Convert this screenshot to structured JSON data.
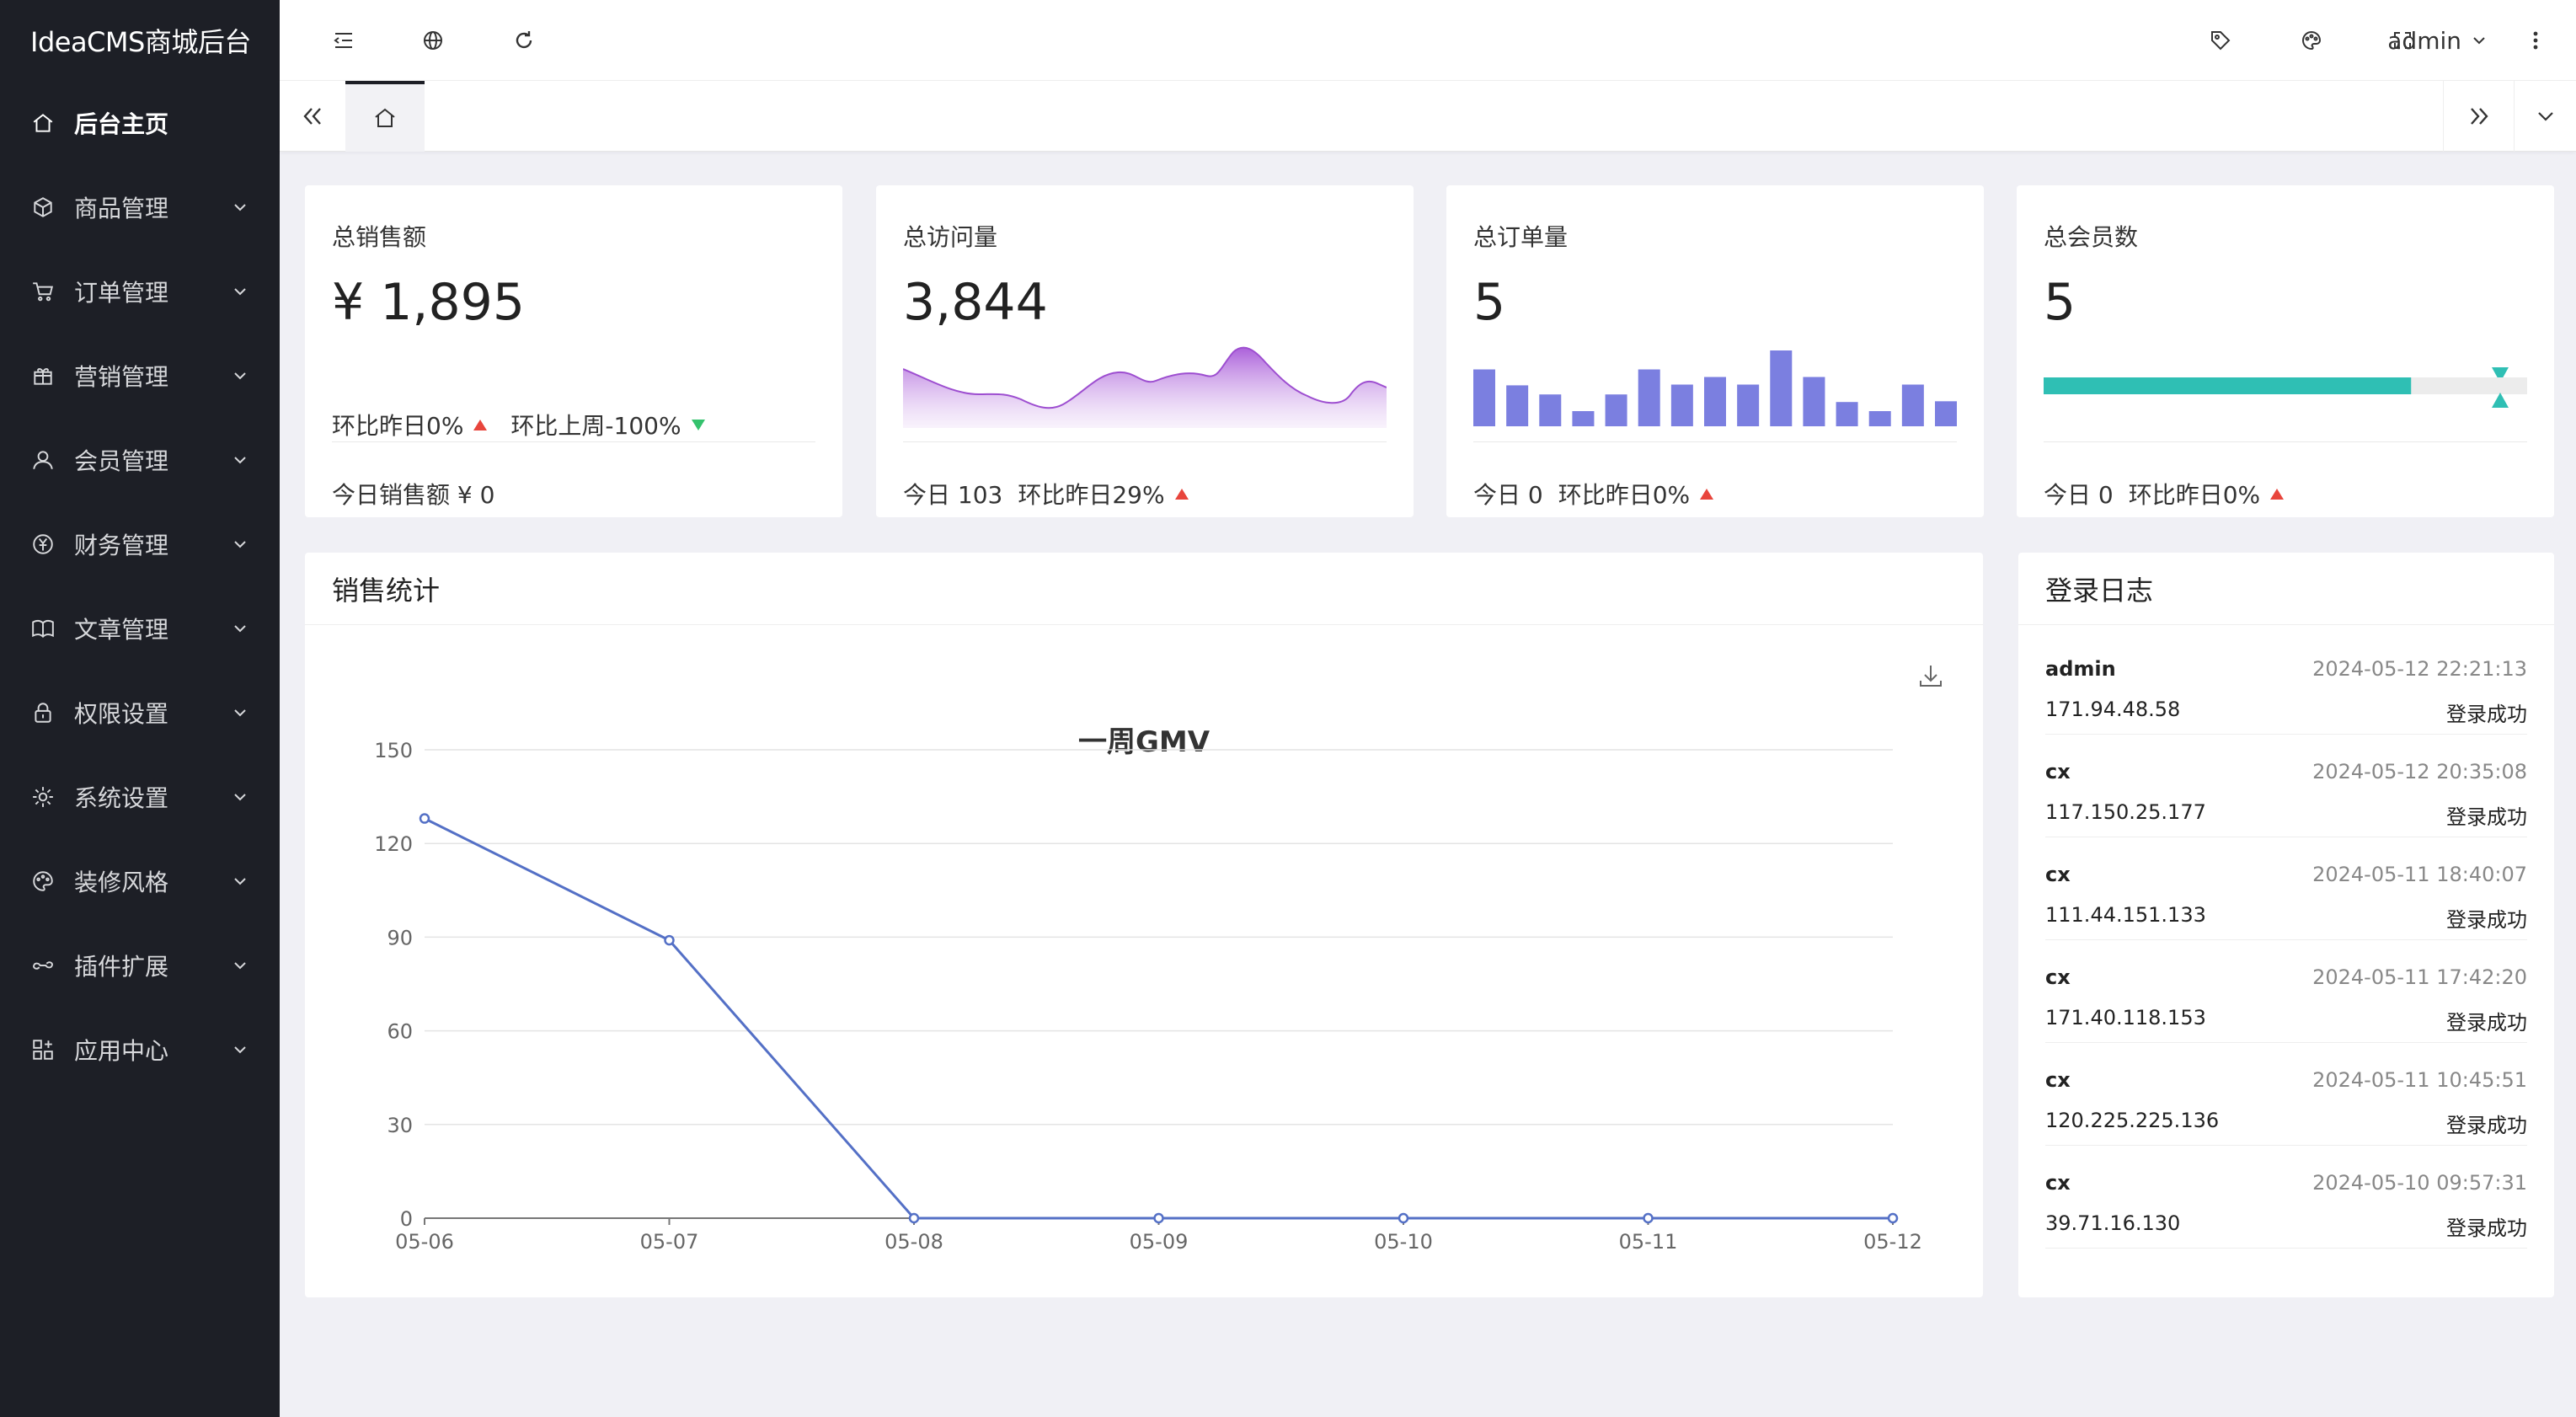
{
  "app": {
    "title": "IdeaCMS商城后台"
  },
  "sidebar": {
    "items": [
      {
        "label": "后台主页",
        "icon": "home-icon",
        "active": true
      },
      {
        "label": "商品管理",
        "icon": "cube-icon"
      },
      {
        "label": "订单管理",
        "icon": "cart-icon"
      },
      {
        "label": "营销管理",
        "icon": "gift-icon"
      },
      {
        "label": "会员管理",
        "icon": "user-icon"
      },
      {
        "label": "财务管理",
        "icon": "yen-icon"
      },
      {
        "label": "文章管理",
        "icon": "book-icon"
      },
      {
        "label": "权限设置",
        "icon": "lock-icon"
      },
      {
        "label": "系统设置",
        "icon": "gear-icon"
      },
      {
        "label": "装修风格",
        "icon": "palette-icon"
      },
      {
        "label": "插件扩展",
        "icon": "link-icon"
      },
      {
        "label": "应用中心",
        "icon": "apps-icon"
      }
    ]
  },
  "header": {
    "user": "admin"
  },
  "stats": {
    "sales": {
      "title": "总销售额",
      "value": "¥ 1,895",
      "cmp_day": "环比昨日0%",
      "cmp_week": "环比上周-100%",
      "foot": "今日销售额 ¥ 0"
    },
    "visits": {
      "title": "总访问量",
      "value": "3,844",
      "foot_today": "今日 103",
      "foot_cmp": "环比昨日29%"
    },
    "orders": {
      "title": "总订单量",
      "value": "5",
      "foot_today": "今日 0",
      "foot_cmp": "环比昨日0%",
      "bars": [
        0.75,
        0.54,
        0.42,
        0.2,
        0.42,
        0.75,
        0.55,
        0.65,
        0.55,
        1.0,
        0.65,
        0.32,
        0.2,
        0.55,
        0.33
      ]
    },
    "members": {
      "title": "总会员数",
      "value": "5",
      "foot_today": "今日 0",
      "foot_cmp": "环比昨日0%",
      "progress": 0.76
    }
  },
  "sales_panel": {
    "title": "销售统计"
  },
  "chart_data": {
    "type": "line",
    "title": "一周GMV",
    "categories": [
      "05-06",
      "05-07",
      "05-08",
      "05-09",
      "05-10",
      "05-11",
      "05-12"
    ],
    "values": [
      128,
      89,
      0,
      0,
      0,
      0,
      0
    ],
    "ylim": [
      0,
      150
    ],
    "yticks": [
      "0",
      "30",
      "60",
      "90",
      "120",
      "150"
    ],
    "color": "#5470c6",
    "grid": true
  },
  "log_panel": {
    "title": "登录日志",
    "rows": [
      {
        "user": "admin",
        "time": "2024-05-12 22:21:13",
        "ip": "171.94.48.58",
        "status": "登录成功"
      },
      {
        "user": "cx",
        "time": "2024-05-12 20:35:08",
        "ip": "117.150.25.177",
        "status": "登录成功"
      },
      {
        "user": "cx",
        "time": "2024-05-11 18:40:07",
        "ip": "111.44.151.133",
        "status": "登录成功"
      },
      {
        "user": "cx",
        "time": "2024-05-11 17:42:20",
        "ip": "171.40.118.153",
        "status": "登录成功"
      },
      {
        "user": "cx",
        "time": "2024-05-11 10:45:51",
        "ip": "120.225.225.136",
        "status": "登录成功"
      },
      {
        "user": "cx",
        "time": "2024-05-10 09:57:31",
        "ip": "39.71.16.130",
        "status": "登录成功"
      }
    ]
  }
}
